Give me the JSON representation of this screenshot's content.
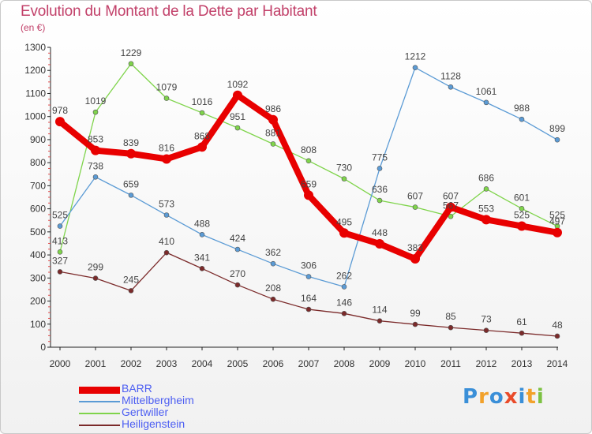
{
  "chart_data": {
    "type": "line",
    "title": "Evolution du Montant de la Dette par Habitant",
    "subtitle": "(en €)",
    "x": [
      2000,
      2001,
      2002,
      2003,
      2004,
      2005,
      2006,
      2007,
      2008,
      2009,
      2010,
      2011,
      2012,
      2013,
      2014
    ],
    "ylim": [
      0,
      1300
    ],
    "yticks": [
      0,
      100,
      200,
      300,
      400,
      500,
      600,
      700,
      800,
      900,
      1000,
      1100,
      1200,
      1300
    ],
    "grid": false,
    "legend_position": "bottom-left",
    "series": [
      {
        "name": "BARR",
        "color": "#e80000",
        "values": [
          978,
          853,
          839,
          816,
          868,
          1092,
          986,
          659,
          495,
          448,
          383,
          607,
          553,
          525,
          497
        ]
      },
      {
        "name": "Mittelbergheim",
        "color": "#5b9bd5",
        "values": [
          525,
          738,
          659,
          573,
          488,
          424,
          362,
          306,
          262,
          775,
          1212,
          1128,
          1061,
          988,
          899
        ]
      },
      {
        "name": "Gertwiller",
        "color": "#7fd44b",
        "values": [
          413,
          1019,
          1229,
          1079,
          1016,
          951,
          881,
          808,
          730,
          636,
          607,
          567,
          686,
          601,
          525
        ]
      },
      {
        "name": "Heiligenstein",
        "color": "#7b2a2a",
        "values": [
          327,
          299,
          245,
          410,
          341,
          270,
          208,
          164,
          146,
          114,
          99,
          85,
          73,
          61,
          48
        ]
      }
    ]
  },
  "logo": {
    "letters": [
      "P",
      "r",
      "o",
      "x",
      "i",
      "t",
      "i"
    ],
    "colors": [
      "#3a8fd8",
      "#f2a12a",
      "#3a8fd8",
      "#e94b2a",
      "#3a8fd8",
      "#f2a12a",
      "#7cc142"
    ]
  }
}
